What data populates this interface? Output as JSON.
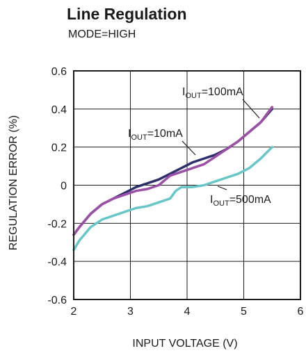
{
  "chart_data": {
    "type": "line",
    "title": "Line Regulation",
    "subtitle": "MODE=HIGH",
    "xlabel": "INPUT VOLTAGE (V)",
    "ylabel": "REGULATION ERROR (%)",
    "xlim": [
      2,
      6
    ],
    "ylim": [
      -0.6,
      0.6
    ],
    "xticks": [
      "2",
      "3",
      "4",
      "5",
      "6"
    ],
    "yticks": [
      "0.6",
      "0.4",
      "0.2",
      "0",
      "-0.2",
      "-0.4",
      "-0.6"
    ],
    "grid": true,
    "series": [
      {
        "label_main": "I",
        "label_sub": "OUT",
        "label_rest": "=10mA",
        "color": "#2d2f6b",
        "x": [
          2.0,
          2.1,
          2.3,
          2.5,
          2.7,
          2.9,
          3.1,
          3.3,
          3.5,
          3.7,
          3.9,
          4.1,
          4.3,
          4.5,
          4.7,
          4.9,
          5.1,
          5.3,
          5.5
        ],
        "y": [
          -0.26,
          -0.22,
          -0.15,
          -0.1,
          -0.07,
          -0.04,
          -0.01,
          0.01,
          0.03,
          0.06,
          0.09,
          0.12,
          0.14,
          0.16,
          0.19,
          0.23,
          0.28,
          0.33,
          0.4
        ]
      },
      {
        "label_main": "I",
        "label_sub": "OUT",
        "label_rest": "=100mA",
        "color": "#9b4fa5",
        "x": [
          2.0,
          2.1,
          2.3,
          2.5,
          2.7,
          2.9,
          3.1,
          3.3,
          3.5,
          3.7,
          3.9,
          4.1,
          4.3,
          4.5,
          4.7,
          4.9,
          5.1,
          5.3,
          5.5
        ],
        "y": [
          -0.26,
          -0.22,
          -0.15,
          -0.1,
          -0.07,
          -0.05,
          -0.03,
          -0.02,
          0.0,
          0.05,
          0.07,
          0.09,
          0.11,
          0.15,
          0.19,
          0.23,
          0.28,
          0.33,
          0.41
        ]
      },
      {
        "label_main": "I",
        "label_sub": "OUT",
        "label_rest": "=500mA",
        "color": "#66c6c8",
        "x": [
          2.0,
          2.1,
          2.3,
          2.5,
          2.7,
          2.9,
          3.1,
          3.3,
          3.5,
          3.7,
          3.8,
          3.9,
          4.1,
          4.3,
          4.5,
          4.7,
          4.9,
          5.1,
          5.3,
          5.5
        ],
        "y": [
          -0.34,
          -0.29,
          -0.22,
          -0.18,
          -0.16,
          -0.14,
          -0.12,
          -0.11,
          -0.09,
          -0.07,
          -0.03,
          -0.01,
          -0.01,
          0.0,
          0.02,
          0.04,
          0.06,
          0.09,
          0.14,
          0.2
        ]
      }
    ]
  }
}
